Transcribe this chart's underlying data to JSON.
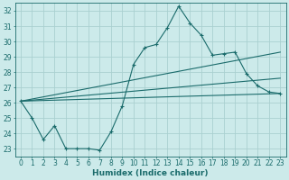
{
  "bg_color": "#cceaea",
  "grid_color": "#aad0d0",
  "line_color": "#1a6b6b",
  "xlabel": "Humidex (Indice chaleur)",
  "xlabel_fontsize": 6.5,
  "tick_fontsize": 5.5,
  "xlim": [
    -0.5,
    23.5
  ],
  "ylim": [
    22.5,
    32.5
  ],
  "yticks": [
    23,
    24,
    25,
    26,
    27,
    28,
    29,
    30,
    31,
    32
  ],
  "xticks": [
    0,
    1,
    2,
    3,
    4,
    5,
    6,
    7,
    8,
    9,
    10,
    11,
    12,
    13,
    14,
    15,
    16,
    17,
    18,
    19,
    20,
    21,
    22,
    23
  ],
  "line1_x": [
    0,
    1,
    2,
    3,
    4,
    5,
    6,
    7,
    8,
    9,
    10,
    11,
    12,
    13,
    14,
    15,
    16,
    17,
    18,
    19,
    20,
    21,
    22,
    23
  ],
  "line1_y": [
    26.1,
    25.0,
    23.6,
    24.5,
    23.0,
    23.0,
    23.0,
    22.9,
    24.1,
    25.8,
    28.5,
    29.6,
    29.8,
    30.9,
    32.3,
    31.2,
    30.4,
    29.1,
    29.2,
    29.3,
    27.9,
    27.1,
    26.7,
    26.6
  ],
  "line3_x": [
    0,
    23
  ],
  "line3_y": [
    26.1,
    26.6
  ],
  "line4_x": [
    0,
    23
  ],
  "line4_y": [
    26.1,
    27.6
  ],
  "line5_x": [
    0,
    23
  ],
  "line5_y": [
    26.1,
    29.3
  ]
}
